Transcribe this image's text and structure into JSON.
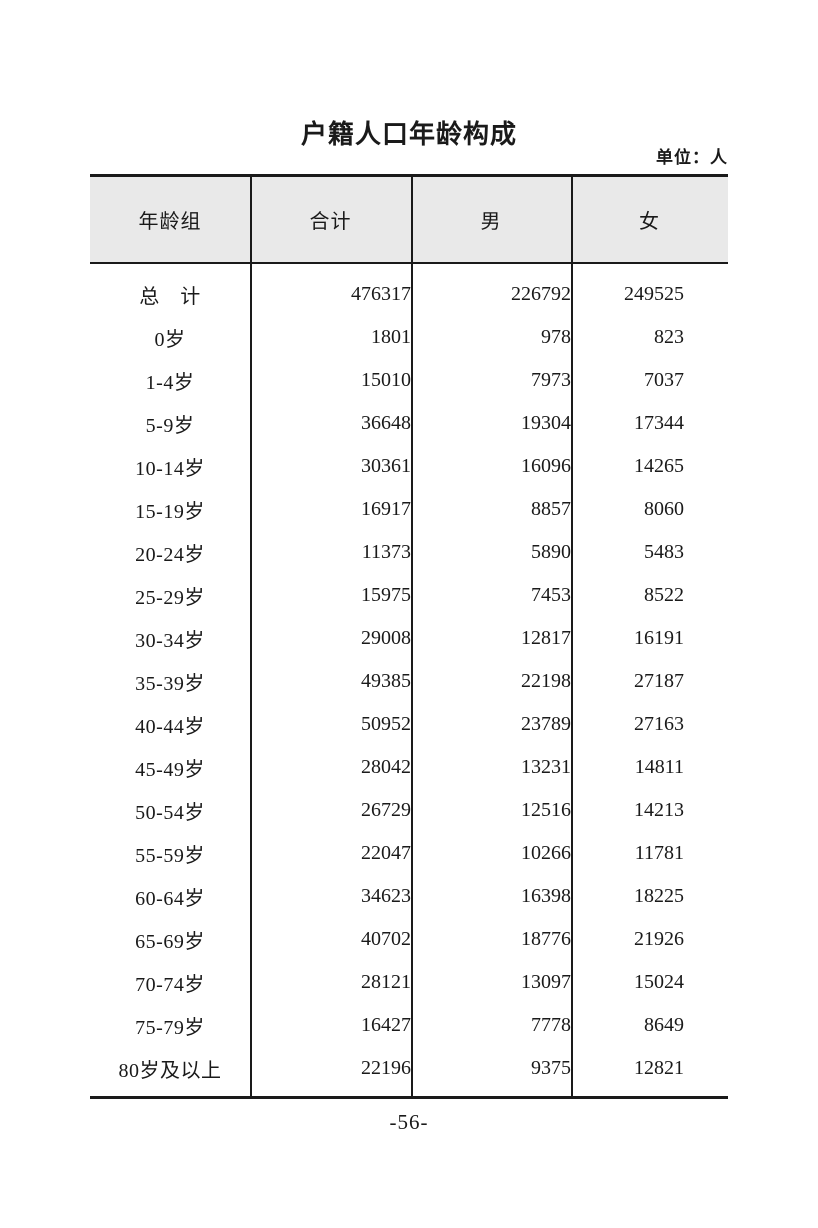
{
  "page": {
    "title": "户籍人口年龄构成",
    "unit_label": "单位：人",
    "page_number": "-56-"
  },
  "colors": {
    "header_bg": "#e9e9e9",
    "border": "#1a1a1a",
    "text": "#1a1a1a"
  },
  "table": {
    "columns": [
      "年龄组",
      "合计",
      "男",
      "女"
    ],
    "rows": [
      [
        "总　计",
        "476317",
        "226792",
        "249525"
      ],
      [
        "0岁",
        "1801",
        "978",
        "823"
      ],
      [
        "1-4岁",
        "15010",
        "7973",
        "7037"
      ],
      [
        "5-9岁",
        "36648",
        "19304",
        "17344"
      ],
      [
        "10-14岁",
        "30361",
        "16096",
        "14265"
      ],
      [
        "15-19岁",
        "16917",
        "8857",
        "8060"
      ],
      [
        "20-24岁",
        "11373",
        "5890",
        "5483"
      ],
      [
        "25-29岁",
        "15975",
        "7453",
        "8522"
      ],
      [
        "30-34岁",
        "29008",
        "12817",
        "16191"
      ],
      [
        "35-39岁",
        "49385",
        "22198",
        "27187"
      ],
      [
        "40-44岁",
        "50952",
        "23789",
        "27163"
      ],
      [
        "45-49岁",
        "28042",
        "13231",
        "14811"
      ],
      [
        "50-54岁",
        "26729",
        "12516",
        "14213"
      ],
      [
        "55-59岁",
        "22047",
        "10266",
        "11781"
      ],
      [
        "60-64岁",
        "34623",
        "16398",
        "18225"
      ],
      [
        "65-69岁",
        "40702",
        "18776",
        "21926"
      ],
      [
        "70-74岁",
        "28121",
        "13097",
        "15024"
      ],
      [
        "75-79岁",
        "16427",
        "7778",
        "8649"
      ],
      [
        "80岁及以上",
        "22196",
        "9375",
        "12821"
      ]
    ]
  }
}
